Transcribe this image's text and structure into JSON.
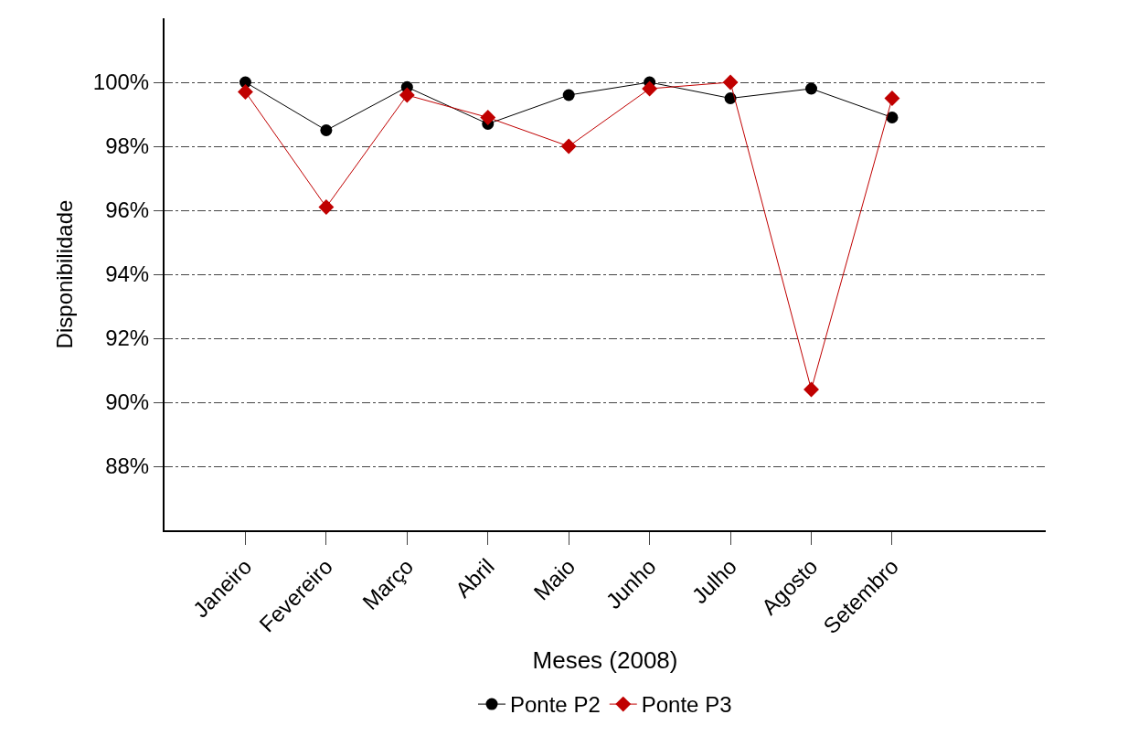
{
  "chart_data": {
    "type": "line",
    "xlabel": "Meses (2008)",
    "ylabel": "Disponibilidade",
    "categories": [
      "Janeiro",
      "Fevereiro",
      "Março",
      "Abril",
      "Maio",
      "Junho",
      "Julho",
      "Agosto",
      "Setembro"
    ],
    "series": [
      {
        "name": "Ponte P2",
        "color": "#000000",
        "marker": "circle",
        "values": [
          100.0,
          98.5,
          99.85,
          98.7,
          99.6,
          100.0,
          99.5,
          99.8,
          98.9
        ]
      },
      {
        "name": "Ponte P3",
        "color": "#c00000",
        "marker": "diamond",
        "values": [
          99.7,
          96.1,
          99.6,
          98.9,
          98.0,
          99.8,
          100.0,
          90.4,
          99.5
        ]
      }
    ],
    "ylim": [
      86,
      102
    ],
    "yticks": [
      {
        "value": 88,
        "label": "88%"
      },
      {
        "value": 90,
        "label": "90%"
      },
      {
        "value": 92,
        "label": "92%"
      },
      {
        "value": 94,
        "label": "94%"
      },
      {
        "value": 96,
        "label": "96%"
      },
      {
        "value": 98,
        "label": "98%"
      },
      {
        "value": 100,
        "label": "100%"
      }
    ],
    "grid": "y",
    "legend": "bottom",
    "line_style": "solid"
  }
}
